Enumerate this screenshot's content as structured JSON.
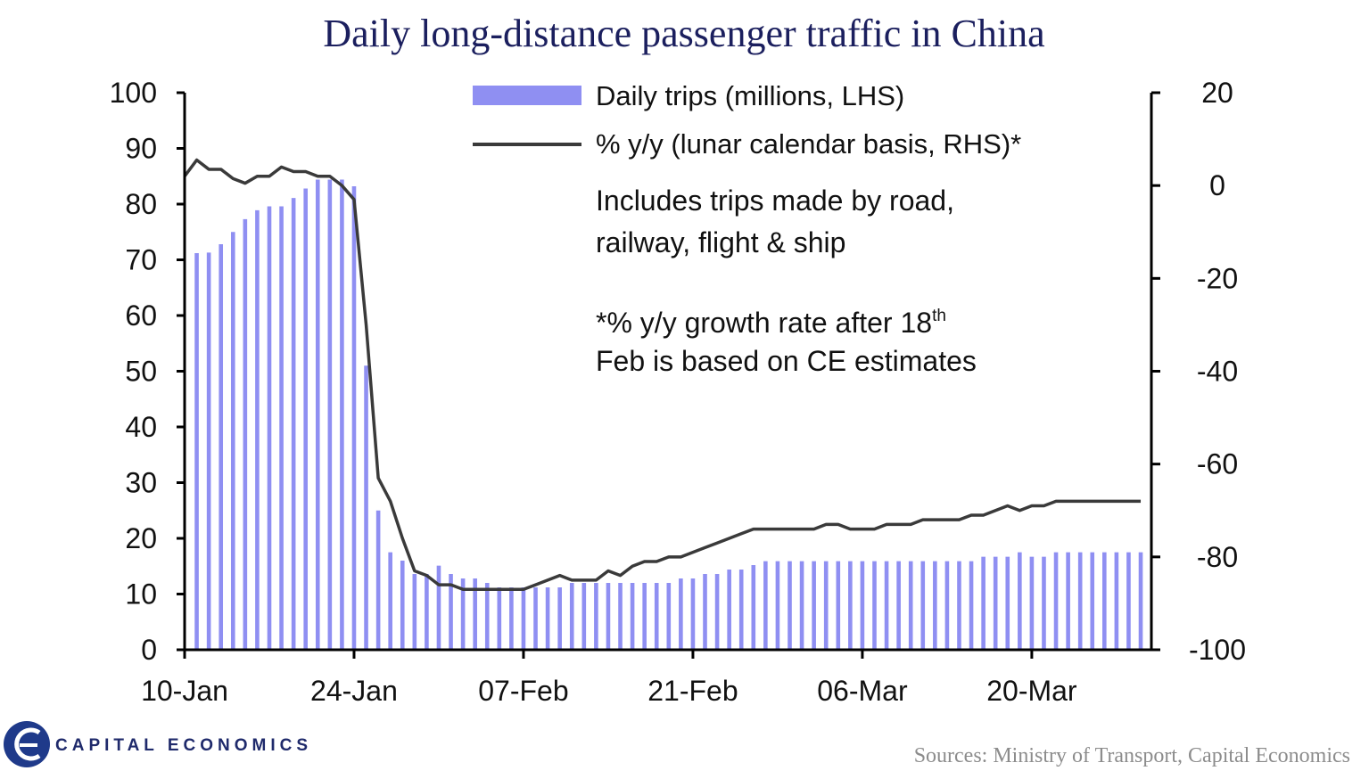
{
  "brand": {
    "name": "CAPITAL ECONOMICS",
    "logo_color": "#1f3a8a"
  },
  "source": "Sources: Ministry of Transport, Capital Economics",
  "chart_data": {
    "type": "bar+line",
    "title": "Daily long-distance passenger traffic in China",
    "x_tick_labels": [
      "10-Jan",
      "24-Jan",
      "07-Feb",
      "21-Feb",
      "06-Mar",
      "20-Mar"
    ],
    "x_tick_day_index": [
      0,
      14,
      28,
      42,
      56,
      70
    ],
    "left_axis": {
      "ylim": [
        0,
        100
      ],
      "ticks": [
        "0",
        "10",
        "20",
        "30",
        "40",
        "50",
        "60",
        "70",
        "80",
        "90",
        "100"
      ]
    },
    "right_axis": {
      "ylim": [
        -100,
        20
      ],
      "ticks": [
        "-100",
        "-80",
        "-60",
        "-40",
        "-20",
        "0",
        "20"
      ]
    },
    "legend": {
      "bar_label": "Daily trips (millions, LHS)",
      "line_label": "% y/y (lunar calendar basis, RHS)*"
    },
    "annotations": {
      "note1_line1": "Includes  trips made by road,",
      "note1_line2": "railway,  flight  & ship",
      "note2_line1_prefix": "*% y/y growth  rate after 18",
      "note2_line1_sup": "th",
      "note2_line2": "Feb is based on  CE estimates"
    },
    "colors": {
      "bars": "#8f8ff2",
      "line": "#3a3a3a",
      "axis": "#000000"
    },
    "series": [
      {
        "name": "Daily trips (millions, LHS)",
        "kind": "bar",
        "axis": "left",
        "start_day_index": 1,
        "values": [
          71.2,
          71.3,
          72.8,
          75.0,
          77.3,
          78.9,
          79.6,
          79.6,
          81.1,
          82.8,
          84.4,
          84.4,
          84.4,
          83.2,
          51.0,
          25.0,
          17.5,
          16.0,
          13.6,
          13.6,
          15.1,
          13.6,
          12.8,
          12.8,
          12.0,
          11.2,
          11.2,
          11.2,
          11.2,
          11.2,
          11.2,
          12.0,
          12.0,
          12.0,
          12.0,
          12.0,
          12.0,
          12.0,
          12.0,
          12.0,
          12.8,
          12.8,
          13.6,
          13.6,
          14.4,
          14.4,
          15.2,
          15.9,
          15.9,
          15.9,
          15.9,
          15.9,
          15.9,
          15.9,
          15.9,
          15.9,
          15.9,
          15.9,
          15.9,
          15.9,
          15.9,
          15.9,
          15.9,
          15.9,
          15.9,
          16.7,
          16.7,
          16.7,
          17.5,
          16.7,
          16.7,
          17.5,
          17.5,
          17.5,
          17.5,
          17.5,
          17.5,
          17.5,
          17.5
        ]
      },
      {
        "name": "% y/y (lunar calendar basis, RHS)*",
        "kind": "line",
        "axis": "right",
        "start_day_index": 0,
        "values": [
          2,
          5.5,
          3.5,
          3.5,
          1.5,
          0.5,
          2,
          2,
          4,
          3,
          3,
          2,
          2,
          0,
          -3,
          -30,
          -63,
          -68,
          -76,
          -83,
          -84,
          -86,
          -86,
          -87,
          -87,
          -87,
          -87,
          -87,
          -87,
          -86,
          -85,
          -84,
          -85,
          -85,
          -85,
          -83,
          -84,
          -82,
          -81,
          -81,
          -80,
          -80,
          -79,
          -78,
          -77,
          -76,
          -75,
          -74,
          -74,
          -74,
          -74,
          -74,
          -74,
          -73,
          -73,
          -74,
          -74,
          -74,
          -73,
          -73,
          -73,
          -72,
          -72,
          -72,
          -72,
          -71,
          -71,
          -70,
          -69,
          -70,
          -69,
          -69,
          -68,
          -68,
          -68,
          -68,
          -68,
          -68,
          -68,
          -68
        ]
      }
    ]
  }
}
